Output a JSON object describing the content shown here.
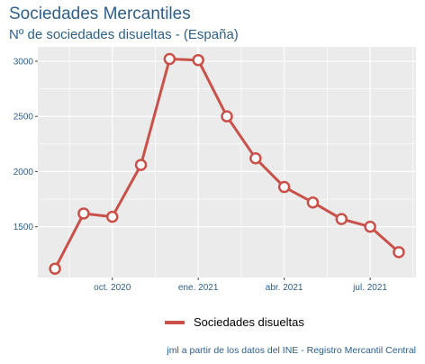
{
  "header": {
    "title": "Sociedades Mercantiles",
    "subtitle": "Nº de sociedades disueltas - (España)"
  },
  "legend": {
    "label": "Sociedades disueltas"
  },
  "caption": "jml a partir de los datos del INE - Registro Mercantil Central",
  "colors": {
    "series": "#c9514a",
    "panel": "#ebebeb",
    "grid": "#ffffff",
    "axis_text": "#2e5f8a"
  },
  "chart_data": {
    "type": "line",
    "title": "Sociedades Mercantiles",
    "subtitle": "Nº de sociedades disueltas - (España)",
    "xlabel": "",
    "ylabel": "",
    "x": [
      "2020-08",
      "2020-09",
      "2020-10",
      "2020-11",
      "2020-12",
      "2021-01",
      "2021-02",
      "2021-03",
      "2021-04",
      "2021-05",
      "2021-06",
      "2021-07",
      "2021-08"
    ],
    "series": [
      {
        "name": "Sociedades disueltas",
        "values": [
          1120,
          1620,
          1590,
          2060,
          3020,
          3010,
          2500,
          2120,
          1860,
          1720,
          1570,
          1500,
          1270
        ]
      }
    ],
    "x_ticks": [
      {
        "x": "2020-10",
        "label": "oct. 2020"
      },
      {
        "x": "2021-01",
        "label": "ene. 2021"
      },
      {
        "x": "2021-04",
        "label": "abr. 2021"
      },
      {
        "x": "2021-07",
        "label": "jul. 2021"
      }
    ],
    "y_ticks": [
      1500,
      2000,
      2500,
      3000
    ],
    "ylim": [
      1040,
      3130
    ],
    "grid": true,
    "legend_position": "bottom"
  }
}
